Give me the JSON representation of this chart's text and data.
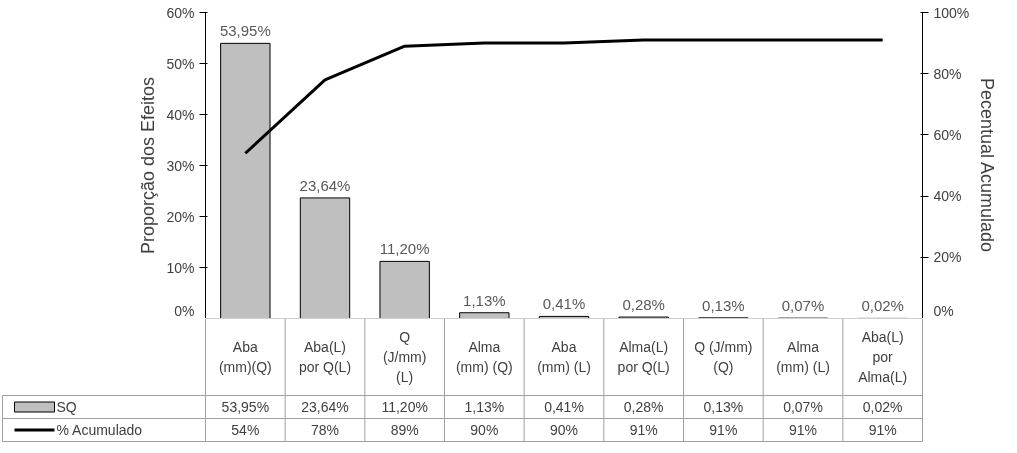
{
  "chart_data": {
    "type": "bar",
    "categories": [
      "Aba\n(mm)(Q)",
      "Aba(L)\npor Q(L)",
      "Q\n(J/mm)\n(L)",
      "Alma\n(mm) (Q)",
      "Aba\n(mm) (L)",
      "Alma(L)\npor Q(L)",
      "Q (J/mm)\n(Q)",
      "Alma\n(mm) (L)",
      "Aba(L)\npor\nAlma(L)"
    ],
    "series": [
      {
        "name": "SQ",
        "color": "#bfbfbf",
        "values": [
          53.95,
          23.64,
          11.2,
          1.13,
          0.41,
          0.28,
          0.13,
          0.07,
          0.02
        ],
        "value_labels": [
          "53,95%",
          "23,64%",
          "11,20%",
          "1,13%",
          "0,41%",
          "0,28%",
          "0,13%",
          "0,07%",
          "0,02%"
        ]
      },
      {
        "name": "% Acumulado",
        "type": "line",
        "axis": "y2",
        "color": "#000000",
        "values": [
          54,
          78,
          89,
          90,
          90,
          91,
          91,
          91,
          91
        ],
        "value_labels": [
          "54%",
          "78%",
          "89%",
          "90%",
          "90%",
          "91%",
          "91%",
          "91%",
          "91%"
        ]
      }
    ],
    "ylabel": "Proporção dos Efeitos",
    "y2label": "Pecentual Acumulado",
    "ylim": [
      0,
      60
    ],
    "yticks": [
      {
        "value": 0,
        "label": "0%"
      },
      {
        "value": 10,
        "label": "10%"
      },
      {
        "value": 20,
        "label": "20%"
      },
      {
        "value": 30,
        "label": "30%"
      },
      {
        "value": 40,
        "label": "40%"
      },
      {
        "value": 50,
        "label": "50%"
      },
      {
        "value": 60,
        "label": "60%"
      }
    ],
    "y2lim": [
      0,
      100
    ],
    "y2ticks": [
      {
        "value": 0,
        "label": "0%"
      },
      {
        "value": 20,
        "label": "20%"
      },
      {
        "value": 40,
        "label": "40%"
      },
      {
        "value": 60,
        "label": "60%"
      },
      {
        "value": 80,
        "label": "80%"
      },
      {
        "value": 100,
        "label": "100%"
      }
    ],
    "grid": false,
    "legend": "bottom left"
  }
}
